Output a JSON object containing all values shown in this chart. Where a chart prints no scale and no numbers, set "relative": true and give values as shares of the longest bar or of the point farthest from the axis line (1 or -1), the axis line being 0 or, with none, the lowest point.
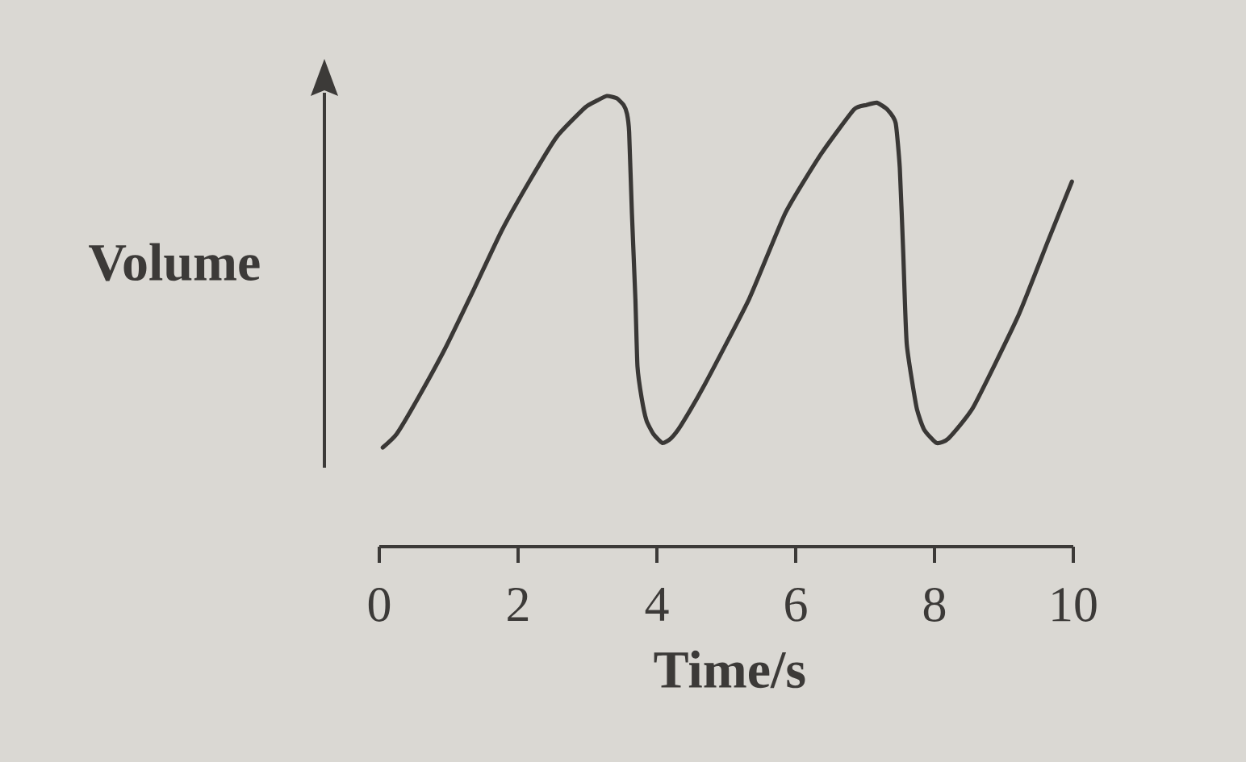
{
  "chart_data": {
    "type": "line",
    "xlabel": "Time/s",
    "ylabel": "Volume",
    "relative": true,
    "xlim": [
      0,
      10
    ],
    "xticks": [
      0,
      2,
      4,
      6,
      8,
      10
    ],
    "marker": "none",
    "line_style": "solid",
    "color": "#3a3836",
    "x": [
      0.05,
      0.25,
      0.56,
      0.95,
      1.36,
      1.76,
      2.16,
      2.56,
      2.97,
      3.14,
      3.28,
      3.42,
      3.52,
      3.57,
      3.6,
      3.64,
      3.69,
      3.72,
      3.78,
      3.85,
      3.95,
      4.08,
      4.2,
      4.35,
      4.69,
      5.33,
      5.85,
      6.36,
      6.84,
      7.02,
      7.17,
      7.32,
      7.44,
      7.5,
      7.55,
      7.6,
      7.74,
      7.85,
      8.03,
      8.2,
      8.56,
      9.2,
      9.64,
      9.98
    ],
    "values": [
      0.22,
      0.25,
      0.33,
      0.44,
      0.57,
      0.7,
      0.81,
      0.91,
      0.975,
      0.99,
      1.0,
      0.995,
      0.98,
      0.96,
      0.92,
      0.74,
      0.55,
      0.4,
      0.33,
      0.28,
      0.25,
      0.23,
      0.24,
      0.27,
      0.36,
      0.55,
      0.74,
      0.87,
      0.97,
      0.98,
      0.985,
      0.97,
      0.94,
      0.84,
      0.65,
      0.45,
      0.31,
      0.26,
      0.23,
      0.24,
      0.31,
      0.51,
      0.68,
      0.81
    ]
  }
}
